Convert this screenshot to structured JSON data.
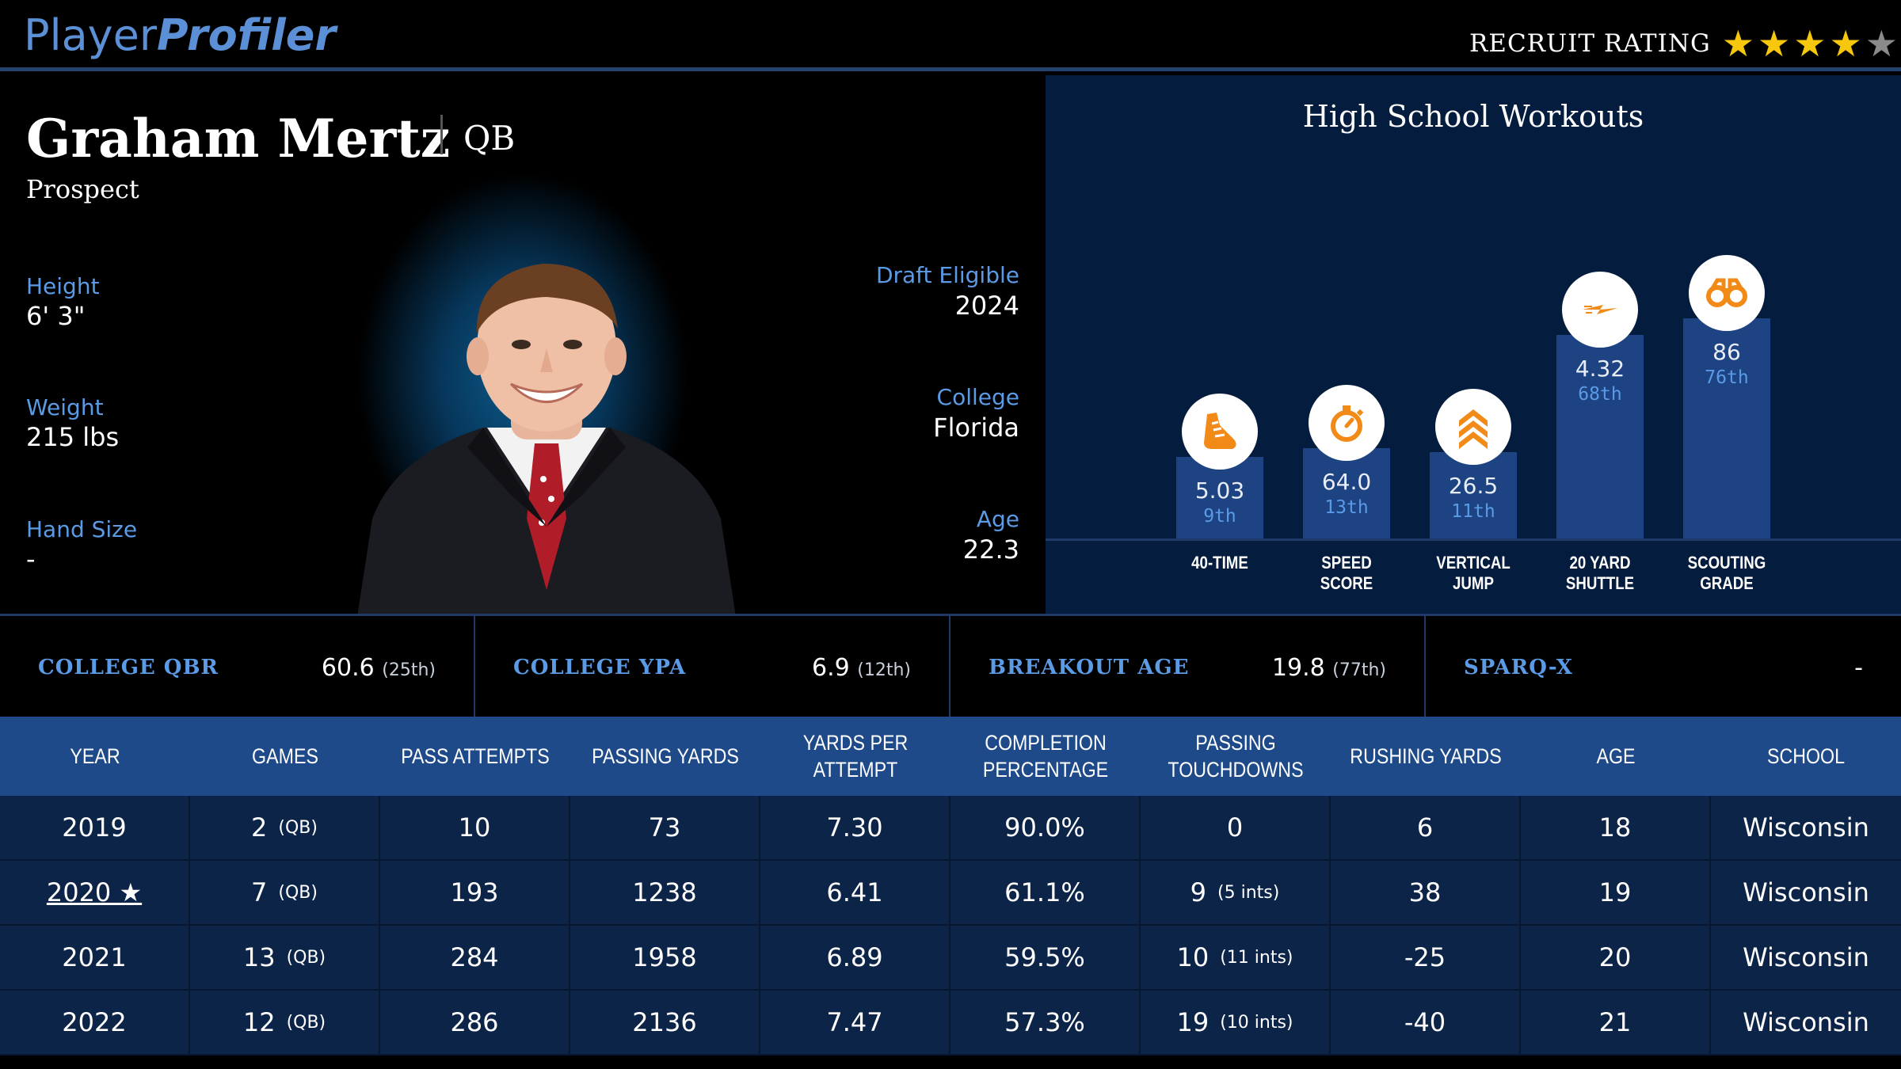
{
  "header": {
    "logo_part1": "Player",
    "logo_part2": "Profiler",
    "recruit_label": "RECRUIT RATING",
    "recruit_stars": 4,
    "recruit_stars_max": 5
  },
  "profile": {
    "name": "Graham Mertz",
    "position": "QB",
    "status": "Prospect",
    "height_label": "Height",
    "height": "6' 3\"",
    "weight_label": "Weight",
    "weight": "215 lbs",
    "hand_label": "Hand Size",
    "hand": "-",
    "draft_label": "Draft Eligible",
    "draft": "2024",
    "college_label": "College",
    "college": "Florida",
    "age_label": "Age",
    "age": "22.3"
  },
  "workouts": {
    "title": "High School Workouts",
    "items": [
      {
        "label_1": "40-TIME",
        "label_2": "",
        "value": "5.03",
        "pct": "9th",
        "pct_num": 9,
        "icon": "running-shoe-icon"
      },
      {
        "label_1": "SPEED",
        "label_2": "SCORE",
        "value": "64.0",
        "pct": "13th",
        "pct_num": 13,
        "icon": "stopwatch-icon"
      },
      {
        "label_1": "VERTICAL",
        "label_2": "JUMP",
        "value": "26.5",
        "pct": "11th",
        "pct_num": 11,
        "icon": "chevrons-up-icon"
      },
      {
        "label_1": "20 YARD",
        "label_2": "SHUTTLE",
        "value": "4.32",
        "pct": "68th",
        "pct_num": 68,
        "icon": "lightning-icon"
      },
      {
        "label_1": "SCOUTING",
        "label_2": "GRADE",
        "value": "86",
        "pct": "76th",
        "pct_num": 76,
        "icon": "binoculars-icon"
      }
    ]
  },
  "metrics": [
    {
      "label": "COLLEGE QBR",
      "value": "60.6",
      "rank": "(25th)"
    },
    {
      "label": "COLLEGE YPA",
      "value": "6.9",
      "rank": "(12th)"
    },
    {
      "label": "BREAKOUT AGE",
      "value": "19.8",
      "rank": "(77th)"
    },
    {
      "label": "SPARQ-X",
      "value": "-",
      "rank": ""
    }
  ],
  "table": {
    "headers": [
      {
        "line1": "YEAR",
        "line2": ""
      },
      {
        "line1": "GAMES",
        "line2": ""
      },
      {
        "line1": "PASS ATTEMPTS",
        "line2": ""
      },
      {
        "line1": "PASSING YARDS",
        "line2": ""
      },
      {
        "line1": "YARDS PER ATTEMPT",
        "line2": ""
      },
      {
        "line1": "COMPLETION",
        "line2": "PERCENTAGE"
      },
      {
        "line1": "PASSING",
        "line2": "TOUCHDOWNS"
      },
      {
        "line1": "RUSHING YARDS",
        "line2": ""
      },
      {
        "line1": "AGE",
        "line2": ""
      },
      {
        "line1": "SCHOOL",
        "line2": ""
      }
    ],
    "rows": [
      {
        "year": "2019",
        "games": "2",
        "games_pos": "(QB)",
        "att": "10",
        "yds": "73",
        "ypa": "7.30",
        "cmp": "90.0%",
        "td": "0",
        "ints": "",
        "rush": "6",
        "age": "18",
        "school": "Wisconsin"
      },
      {
        "year": "2020 ★",
        "games": "7",
        "games_pos": "(QB)",
        "att": "193",
        "yds": "1238",
        "ypa": "6.41",
        "cmp": "61.1%",
        "td": "9",
        "ints": "(5 ints)",
        "rush": "38",
        "age": "19",
        "school": "Wisconsin"
      },
      {
        "year": "2021",
        "games": "13",
        "games_pos": "(QB)",
        "att": "284",
        "yds": "1958",
        "ypa": "6.89",
        "cmp": "59.5%",
        "td": "10",
        "ints": "(11 ints)",
        "rush": "-25",
        "age": "20",
        "school": "Wisconsin"
      },
      {
        "year": "2022",
        "games": "12",
        "games_pos": "(QB)",
        "att": "286",
        "yds": "2136",
        "ypa": "7.47",
        "cmp": "57.3%",
        "td": "19",
        "ints": "(10 ints)",
        "rush": "-40",
        "age": "21",
        "school": "Wisconsin"
      }
    ]
  },
  "colors": {
    "accent_blue": "#5b9be6",
    "bar_blue": "#1d4383",
    "icon_orange": "#f28a17",
    "star_gold": "#f6c70d"
  }
}
